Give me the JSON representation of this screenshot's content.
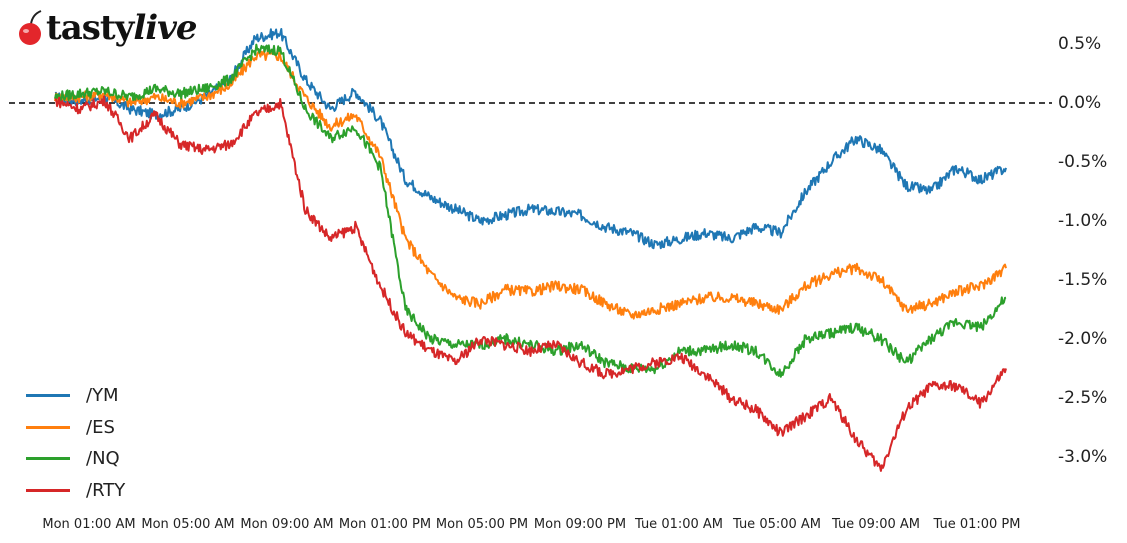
{
  "brand": {
    "name_bold": "tasty",
    "name_italic": "live",
    "icon": "cherry-icon",
    "icon_color": "#e3262b"
  },
  "chart_data": {
    "type": "line",
    "title": "",
    "xlabel": "",
    "ylabel": "",
    "y_axis_position": "right",
    "y_tick_labels": [
      "0.5%",
      "0.0%",
      "-0.5%",
      "-1.0%",
      "-1.5%",
      "-2.0%",
      "-2.5%",
      "-3.0%"
    ],
    "y_ticks": [
      0.5,
      0.0,
      -0.5,
      -1.0,
      -1.5,
      -2.0,
      -2.5,
      -3.0
    ],
    "ylim": [
      -3.3,
      0.75
    ],
    "x_tick_labels": [
      "Mon 01:00 AM",
      "Mon 05:00 AM",
      "Mon 09:00 AM",
      "Mon 01:00 PM",
      "Mon 05:00 PM",
      "Mon 09:00 PM",
      "Tue 01:00 AM",
      "Tue 05:00 AM",
      "Tue 09:00 AM",
      "Tue 01:00 PM"
    ],
    "reference_line": {
      "y": 0.0,
      "style": "dashed",
      "color": "#000000"
    },
    "grid": false,
    "legend_position": "lower left",
    "x": [
      "Mon 00:00",
      "Mon 01:00",
      "Mon 02:00",
      "Mon 03:00",
      "Mon 04:00",
      "Mon 05:00",
      "Mon 06:00",
      "Mon 07:00",
      "Mon 08:00",
      "Mon 09:00",
      "Mon 10:00",
      "Mon 11:00",
      "Mon 12:00",
      "Mon 13:00",
      "Mon 14:00",
      "Mon 15:00",
      "Mon 16:00",
      "Mon 17:00",
      "Mon 18:00",
      "Mon 19:00",
      "Mon 20:00",
      "Mon 21:00",
      "Mon 22:00",
      "Mon 23:00",
      "Tue 00:00",
      "Tue 01:00",
      "Tue 02:00",
      "Tue 03:00",
      "Tue 04:00",
      "Tue 05:00",
      "Tue 06:00",
      "Tue 07:00",
      "Tue 08:00",
      "Tue 09:00",
      "Tue 10:00",
      "Tue 11:00",
      "Tue 12:00",
      "Tue 13:00",
      "Tue 14:00"
    ],
    "series": [
      {
        "name": "/YM",
        "color": "#1f77b4",
        "values": [
          0.05,
          0.02,
          0.05,
          -0.05,
          -0.1,
          -0.05,
          0.05,
          0.2,
          0.55,
          0.6,
          0.2,
          -0.05,
          0.1,
          -0.15,
          -0.65,
          -0.8,
          -0.9,
          -1.0,
          -0.95,
          -0.9,
          -0.92,
          -0.95,
          -1.05,
          -1.1,
          -1.2,
          -1.15,
          -1.1,
          -1.15,
          -1.05,
          -1.1,
          -0.75,
          -0.5,
          -0.3,
          -0.4,
          -0.7,
          -0.75,
          -0.55,
          -0.65,
          -0.55
        ]
      },
      {
        "name": "/ES",
        "color": "#ff7f0e",
        "values": [
          0.05,
          0.05,
          0.08,
          0.0,
          0.05,
          0.0,
          0.05,
          0.15,
          0.4,
          0.4,
          0.05,
          -0.2,
          -0.1,
          -0.45,
          -1.15,
          -1.45,
          -1.65,
          -1.7,
          -1.58,
          -1.6,
          -1.55,
          -1.58,
          -1.7,
          -1.8,
          -1.75,
          -1.7,
          -1.65,
          -1.65,
          -1.7,
          -1.75,
          -1.55,
          -1.45,
          -1.4,
          -1.5,
          -1.75,
          -1.7,
          -1.6,
          -1.55,
          -1.4
        ]
      },
      {
        "name": "/NQ",
        "color": "#2ca02c",
        "values": [
          0.05,
          0.08,
          0.1,
          0.05,
          0.12,
          0.08,
          0.12,
          0.2,
          0.45,
          0.45,
          -0.05,
          -0.3,
          -0.2,
          -0.55,
          -1.75,
          -2.0,
          -2.05,
          -2.05,
          -2.0,
          -2.05,
          -2.1,
          -2.05,
          -2.2,
          -2.25,
          -2.25,
          -2.1,
          -2.1,
          -2.05,
          -2.1,
          -2.3,
          -2.0,
          -1.95,
          -1.9,
          -2.0,
          -2.2,
          -2.0,
          -1.85,
          -1.9,
          -1.65
        ]
      },
      {
        "name": "/RTY",
        "color": "#d62728",
        "values": [
          0.02,
          -0.05,
          0.02,
          -0.3,
          -0.1,
          -0.35,
          -0.4,
          -0.35,
          -0.1,
          0.0,
          -0.9,
          -1.15,
          -1.05,
          -1.55,
          -1.95,
          -2.1,
          -2.2,
          -2.0,
          -2.05,
          -2.1,
          -2.05,
          -2.2,
          -2.3,
          -2.25,
          -2.2,
          -2.15,
          -2.3,
          -2.5,
          -2.6,
          -2.8,
          -2.65,
          -2.5,
          -2.85,
          -3.1,
          -2.6,
          -2.4,
          -2.4,
          -2.55,
          -2.25
        ]
      }
    ]
  }
}
